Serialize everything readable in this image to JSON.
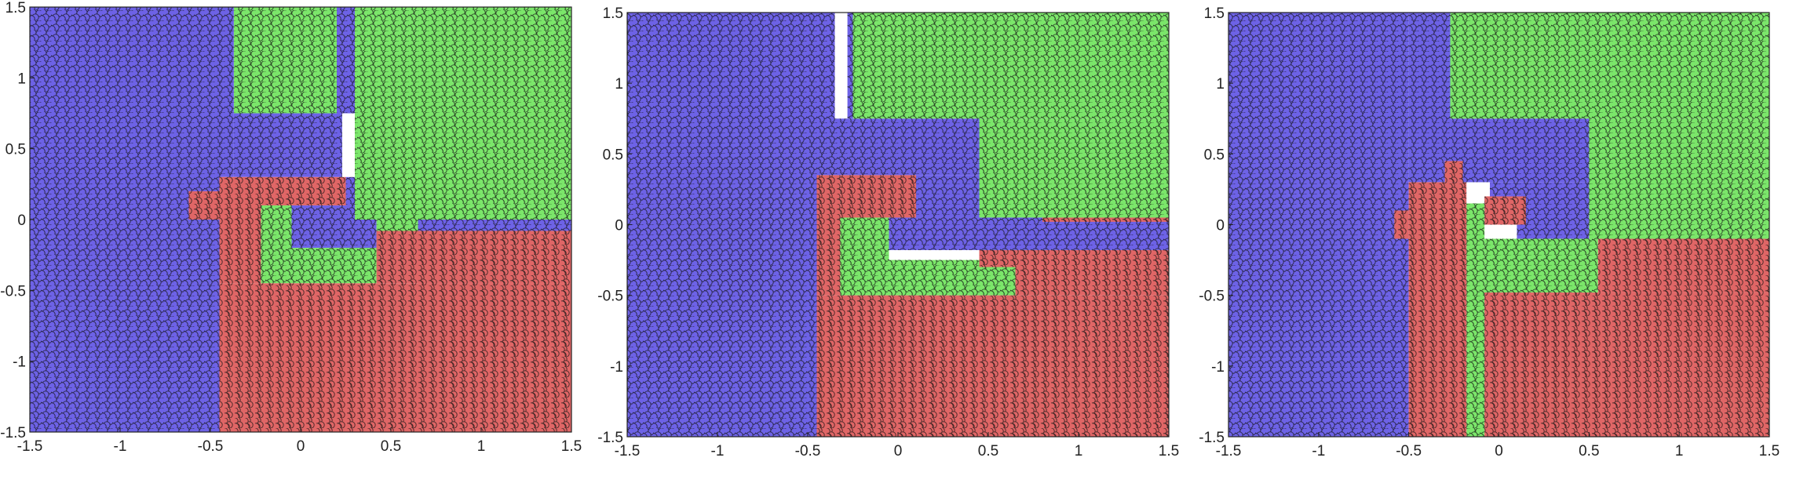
{
  "colors": {
    "blue": "#6d62e6",
    "green": "#7be66a",
    "red": "#e06666",
    "edge": "#111111"
  },
  "chart_data": [
    {
      "type": "scatter",
      "title": "",
      "xlabel": "",
      "ylabel": "",
      "xlim": [
        -1.5,
        1.5
      ],
      "ylim": [
        -1.5,
        1.5
      ],
      "xticks": [
        -1.5,
        -1,
        -0.5,
        0,
        0.5,
        1,
        1.5
      ],
      "yticks": [
        -1.5,
        -1,
        -0.5,
        0,
        0.5,
        1,
        1.5
      ],
      "xtick_labels": [
        "-1.5",
        "-1",
        "-0.5",
        "0",
        "0.5",
        "1",
        "1.5"
      ],
      "ytick_labels": [
        "-1.5",
        "-1",
        "-0.5",
        "0",
        "0.5",
        "1",
        "1.5"
      ],
      "grid": false,
      "legend": "none",
      "series": [
        {
          "color": "blue",
          "regions": [
            {
              "x": [
                -1.5,
                -0.45
              ],
              "y": [
                -1.5,
                1.5
              ]
            },
            {
              "x": [
                -0.45,
                -0.37
              ],
              "y": [
                0.3,
                1.5
              ]
            },
            {
              "x": [
                -0.37,
                0.23
              ],
              "y": [
                0.3,
                0.75
              ]
            },
            {
              "x": [
                0.2,
                0.3
              ],
              "y": [
                0.75,
                1.5
              ]
            },
            {
              "x": [
                -0.6,
                -0.45
              ],
              "y": [
                0.0,
                0.05
              ]
            },
            {
              "x": [
                0.25,
                0.42
              ],
              "y": [
                -0.25,
                0.3
              ]
            },
            {
              "x": [
                -0.05,
                0.3
              ],
              "y": [
                -0.2,
                0.1
              ]
            },
            {
              "x": [
                0.65,
                1.5
              ],
              "y": [
                -0.08,
                0.0
              ]
            }
          ]
        },
        {
          "color": "green",
          "regions": [
            {
              "x": [
                -0.37,
                0.2
              ],
              "y": [
                0.75,
                1.5
              ]
            },
            {
              "x": [
                0.3,
                1.5
              ],
              "y": [
                0.0,
                1.5
              ]
            },
            {
              "x": [
                0.42,
                0.65
              ],
              "y": [
                -0.4,
                0.0
              ]
            },
            {
              "x": [
                -0.22,
                -0.05
              ],
              "y": [
                -0.45,
                0.1
              ]
            },
            {
              "x": [
                -0.05,
                0.42
              ],
              "y": [
                -0.45,
                -0.2
              ]
            }
          ]
        },
        {
          "color": "red",
          "regions": [
            {
              "x": [
                -0.45,
                1.5
              ],
              "y": [
                -1.5,
                -0.45
              ]
            },
            {
              "x": [
                0.42,
                1.5
              ],
              "y": [
                -0.45,
                -0.08
              ]
            },
            {
              "x": [
                0.65,
                1.5
              ],
              "y": [
                -0.45,
                -0.1
              ]
            },
            {
              "x": [
                -0.45,
                -0.22
              ],
              "y": [
                -0.45,
                0.3
              ]
            },
            {
              "x": [
                -0.62,
                -0.45
              ],
              "y": [
                0.0,
                0.2
              ]
            },
            {
              "x": [
                -0.22,
                0.25
              ],
              "y": [
                0.1,
                0.3
              ]
            }
          ]
        }
      ]
    },
    {
      "type": "scatter",
      "title": "",
      "xlabel": "",
      "ylabel": "",
      "xlim": [
        -1.5,
        1.5
      ],
      "ylim": [
        -1.5,
        1.5
      ],
      "xticks": [
        -1.5,
        -1,
        -0.5,
        0,
        0.5,
        1,
        1.5
      ],
      "yticks": [
        -1.5,
        -1,
        -0.5,
        0,
        0.5,
        1,
        1.5
      ],
      "xtick_labels": [
        "-1.5",
        "-1",
        "-0.5",
        "0",
        "0.5",
        "1",
        "1.5"
      ],
      "ytick_labels": [
        "-1.5",
        "-1",
        "-0.5",
        "0",
        "0.5",
        "1",
        "1.5"
      ],
      "grid": false,
      "legend": "none",
      "series": [
        {
          "color": "blue",
          "regions": [
            {
              "x": [
                -1.5,
                -0.45
              ],
              "y": [
                -1.5,
                1.5
              ]
            },
            {
              "x": [
                -0.45,
                -0.35
              ],
              "y": [
                0.35,
                1.5
              ]
            },
            {
              "x": [
                -0.28,
                -0.25
              ],
              "y": [
                0.75,
                1.5
              ]
            },
            {
              "x": [
                -0.35,
                0.5
              ],
              "y": [
                0.35,
                0.75
              ]
            },
            {
              "x": [
                0.1,
                0.45
              ],
              "y": [
                0.05,
                0.35
              ]
            },
            {
              "x": [
                -0.05,
                1.5
              ],
              "y": [
                -0.18,
                0.05
              ]
            }
          ]
        },
        {
          "color": "green",
          "regions": [
            {
              "x": [
                -0.25,
                1.5
              ],
              "y": [
                0.75,
                1.5
              ]
            },
            {
              "x": [
                0.45,
                1.5
              ],
              "y": [
                0.05,
                0.75
              ]
            },
            {
              "x": [
                -0.32,
                -0.05
              ],
              "y": [
                -0.5,
                0.05
              ]
            },
            {
              "x": [
                -0.05,
                0.65
              ],
              "y": [
                -0.5,
                -0.25
              ]
            }
          ]
        },
        {
          "color": "red",
          "regions": [
            {
              "x": [
                -0.45,
                1.5
              ],
              "y": [
                -1.5,
                -0.5
              ]
            },
            {
              "x": [
                -0.45,
                -0.32
              ],
              "y": [
                -0.5,
                0.35
              ]
            },
            {
              "x": [
                -0.32,
                0.1
              ],
              "y": [
                0.05,
                0.35
              ]
            },
            {
              "x": [
                0.65,
                1.5
              ],
              "y": [
                -0.5,
                -0.18
              ]
            },
            {
              "x": [
                0.45,
                0.65
              ],
              "y": [
                -0.3,
                -0.18
              ]
            },
            {
              "x": [
                0.8,
                1.5
              ],
              "y": [
                0.02,
                0.05
              ]
            }
          ]
        }
      ]
    },
    {
      "type": "scatter",
      "title": "",
      "xlabel": "",
      "ylabel": "",
      "xlim": [
        -1.5,
        1.5
      ],
      "ylim": [
        -1.5,
        1.5
      ],
      "xticks": [
        -1.5,
        -1,
        -0.5,
        0,
        0.5,
        1,
        1.5
      ],
      "yticks": [
        -1.5,
        -1,
        -0.5,
        0,
        0.5,
        1,
        1.5
      ],
      "xtick_labels": [
        "-1.5",
        "-1",
        "-0.5",
        "0",
        "0.5",
        "1",
        "1.5"
      ],
      "ytick_labels": [
        "-1.5",
        "-1",
        "-0.5",
        "0",
        "0.5",
        "1",
        "1.5"
      ],
      "grid": false,
      "legend": "none",
      "series": [
        {
          "color": "blue",
          "regions": [
            {
              "x": [
                -1.5,
                -0.5
              ],
              "y": [
                -1.5,
                1.5
              ]
            },
            {
              "x": [
                -0.5,
                -0.27
              ],
              "y": [
                0.3,
                1.5
              ]
            },
            {
              "x": [
                -0.27,
                0.5
              ],
              "y": [
                0.3,
                0.75
              ]
            },
            {
              "x": [
                0.1,
                0.5
              ],
              "y": [
                -0.1,
                0.3
              ]
            },
            {
              "x": [
                -0.05,
                0.1
              ],
              "y": [
                0.0,
                0.3
              ]
            },
            {
              "x": [
                0.5,
                0.62
              ],
              "y": [
                0.1,
                0.4
              ]
            }
          ]
        },
        {
          "color": "green",
          "regions": [
            {
              "x": [
                -0.27,
                1.5
              ],
              "y": [
                0.75,
                1.5
              ]
            },
            {
              "x": [
                0.5,
                1.5
              ],
              "y": [
                -0.1,
                0.75
              ]
            },
            {
              "x": [
                -0.18,
                -0.08
              ],
              "y": [
                -1.5,
                0.15
              ]
            },
            {
              "x": [
                -0.08,
                0.55
              ],
              "y": [
                -0.48,
                -0.1
              ]
            },
            {
              "x": [
                0.55,
                0.78
              ],
              "y": [
                -0.35,
                -0.25
              ]
            }
          ]
        },
        {
          "color": "red",
          "regions": [
            {
              "x": [
                -0.5,
                -0.18
              ],
              "y": [
                -1.5,
                0.3
              ]
            },
            {
              "x": [
                -0.08,
                1.5
              ],
              "y": [
                -1.5,
                -0.48
              ]
            },
            {
              "x": [
                0.55,
                1.5
              ],
              "y": [
                -0.48,
                -0.1
              ]
            },
            {
              "x": [
                -0.58,
                -0.5
              ],
              "y": [
                -0.1,
                0.1
              ]
            },
            {
              "x": [
                -0.3,
                -0.2
              ],
              "y": [
                0.3,
                0.45
              ]
            },
            {
              "x": [
                -0.08,
                0.15
              ],
              "y": [
                0.0,
                0.2
              ]
            }
          ]
        }
      ]
    }
  ]
}
